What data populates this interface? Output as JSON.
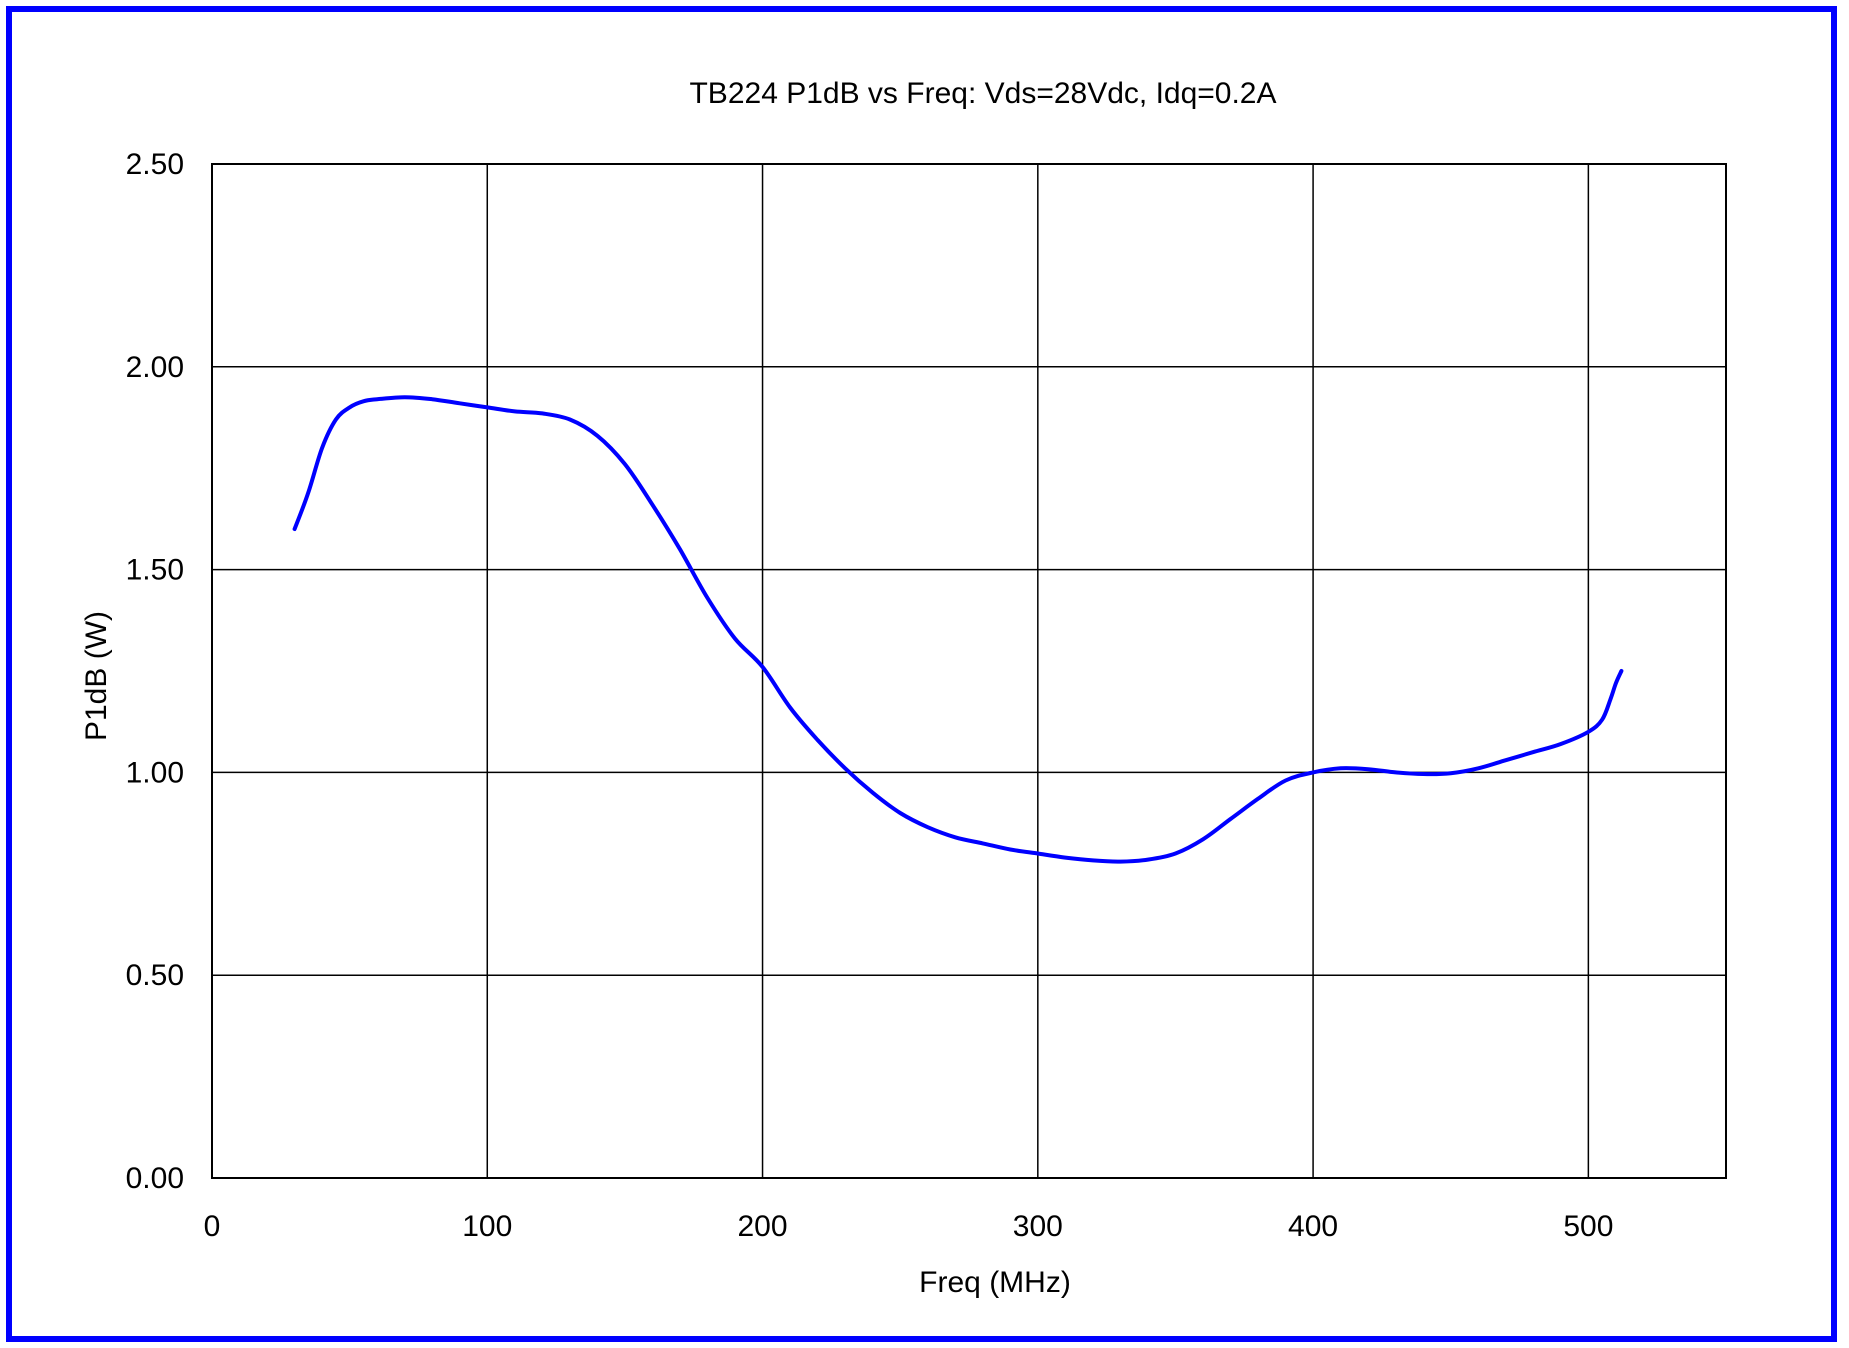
{
  "chart_data": {
    "type": "line",
    "title": "TB224 P1dB vs Freq: Vds=28Vdc, Idq=0.2A",
    "xlabel": "Freq (MHz)",
    "ylabel": "P1dB (W)",
    "xlim": [
      0,
      550
    ],
    "ylim": [
      0,
      2.5
    ],
    "x_ticks": [
      0,
      100,
      200,
      300,
      400,
      500
    ],
    "y_ticks": [
      0,
      0.5,
      1.0,
      1.5,
      2.0,
      2.5
    ],
    "x_tick_labels": [
      "0",
      "100",
      "200",
      "300",
      "400",
      "500"
    ],
    "y_tick_labels": [
      "0.00",
      "0.50",
      "1.00",
      "1.50",
      "2.00",
      "2.50"
    ],
    "grid": true,
    "series": [
      {
        "color": "#0000ff",
        "x": [
          30,
          35,
          40,
          45,
          50,
          55,
          60,
          70,
          80,
          90,
          100,
          110,
          120,
          130,
          140,
          150,
          160,
          170,
          180,
          190,
          200,
          210,
          220,
          230,
          240,
          250,
          260,
          270,
          280,
          290,
          300,
          310,
          320,
          330,
          340,
          350,
          360,
          370,
          380,
          390,
          400,
          410,
          420,
          430,
          440,
          450,
          460,
          470,
          480,
          490,
          500,
          505,
          508,
          510,
          512
        ],
        "y": [
          1.6,
          1.69,
          1.8,
          1.87,
          1.9,
          1.915,
          1.92,
          1.925,
          1.92,
          1.91,
          1.9,
          1.89,
          1.885,
          1.87,
          1.83,
          1.76,
          1.66,
          1.55,
          1.43,
          1.33,
          1.26,
          1.16,
          1.08,
          1.01,
          0.95,
          0.9,
          0.865,
          0.84,
          0.825,
          0.81,
          0.8,
          0.79,
          0.783,
          0.78,
          0.785,
          0.8,
          0.835,
          0.885,
          0.935,
          0.98,
          1.0,
          1.01,
          1.008,
          1.0,
          0.996,
          0.998,
          1.01,
          1.03,
          1.05,
          1.07,
          1.1,
          1.13,
          1.18,
          1.22,
          1.25
        ]
      }
    ]
  }
}
